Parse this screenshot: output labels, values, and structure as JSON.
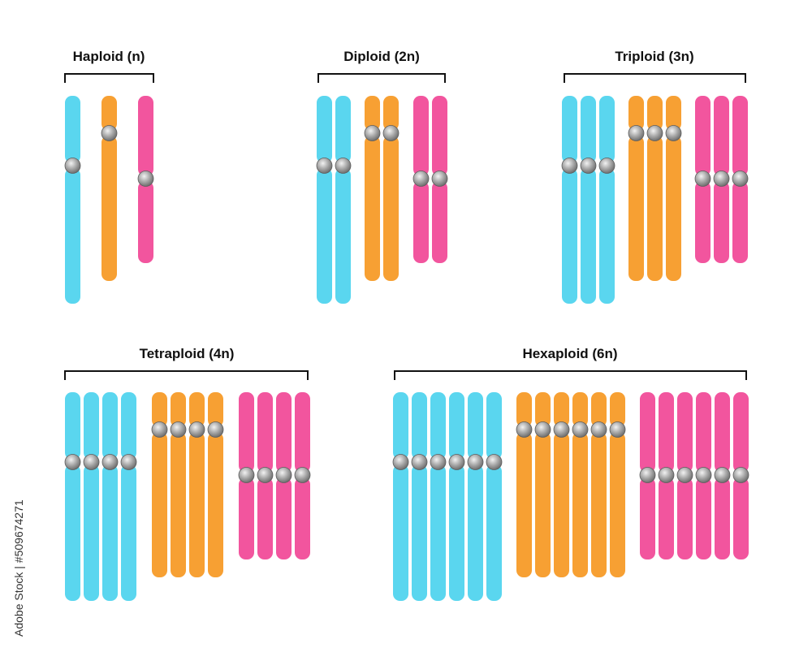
{
  "colors": {
    "chromosome_set_1": "#5ad6ef",
    "chromosome_set_2": "#f7a033",
    "chromosome_set_3": "#f2559e",
    "centromere": "#9a9a9a",
    "bracket": "#111111"
  },
  "groups": [
    {
      "label": "Haploid (n)",
      "copies": 1
    },
    {
      "label": "Diploid (2n)",
      "copies": 2
    },
    {
      "label": "Triploid (3n)",
      "copies": 3
    },
    {
      "label": "Tetraploid (4n)",
      "copies": 4
    },
    {
      "label": "Hexaploid (6n)",
      "copies": 6
    }
  ],
  "watermark": {
    "stock_id": "Adobe Stock | #509674271"
  }
}
